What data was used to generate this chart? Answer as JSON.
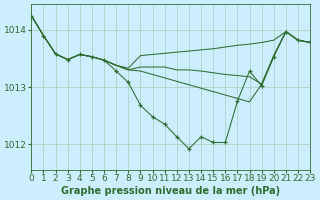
{
  "title": "Graphe pression niveau de la mer (hPa)",
  "bg_color": "#cceeff",
  "line_color": "#2d6e2d",
  "grid_color": "#aaccbb",
  "xlim": [
    0,
    23
  ],
  "ylim": [
    1011.55,
    1014.45
  ],
  "yticks": [
    1012,
    1013,
    1014
  ],
  "xticks": [
    0,
    1,
    2,
    3,
    4,
    5,
    6,
    7,
    8,
    9,
    10,
    11,
    12,
    13,
    14,
    15,
    16,
    17,
    18,
    19,
    20,
    21,
    22,
    23
  ],
  "xlabel_fontsize": 7,
  "tick_fontsize": 6.5,
  "series_with_markers": [
    1014.25,
    1013.9,
    1013.58,
    1013.48,
    1013.57,
    1013.53,
    1013.47,
    1013.28,
    1013.08,
    1012.68,
    1012.48,
    1012.35,
    1012.13,
    1011.92,
    1012.13,
    1012.03,
    1012.03,
    1012.75,
    1013.28,
    1013.02,
    1013.53,
    1013.97,
    1013.82,
    1013.78
  ],
  "line_flat_high": [
    1014.25,
    1013.9,
    1013.58,
    1013.48,
    1013.57,
    1013.53,
    1013.47,
    1013.38,
    1013.33,
    1013.55,
    1013.57,
    1013.59,
    1013.61,
    1013.63,
    1013.65,
    1013.67,
    1013.7,
    1013.73,
    1013.75,
    1013.78,
    1013.82,
    1013.97,
    1013.82,
    1013.78
  ],
  "line_diagonal1": [
    1014.25,
    1013.9,
    1013.58,
    1013.48,
    1013.57,
    1013.53,
    1013.47,
    1013.38,
    1013.3,
    1013.35,
    1013.35,
    1013.35,
    1013.3,
    1013.3,
    1013.28,
    1013.25,
    1013.22,
    1013.2,
    1013.18,
    1013.05,
    1013.55,
    1013.97,
    1013.82,
    1013.78
  ],
  "line_diagonal2": [
    1014.25,
    1013.9,
    1013.58,
    1013.48,
    1013.57,
    1013.53,
    1013.47,
    1013.38,
    1013.3,
    1013.28,
    1013.22,
    1013.16,
    1013.1,
    1013.04,
    1012.98,
    1012.92,
    1012.86,
    1012.8,
    1012.74,
    1013.05,
    1013.55,
    1013.97,
    1013.82,
    1013.78
  ]
}
